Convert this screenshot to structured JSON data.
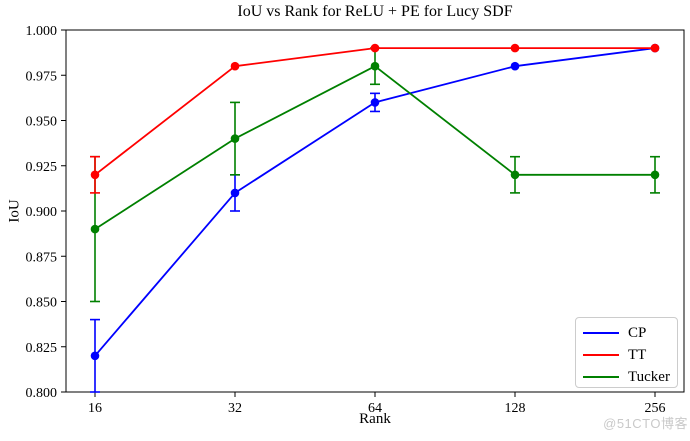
{
  "page": {
    "watermark": "@51CTO博客"
  },
  "chart_data": {
    "type": "line",
    "title": "IoU vs Rank for ReLU + PE for Lucy SDF",
    "xlabel": "Rank",
    "ylabel": "IoU",
    "x": [
      16,
      32,
      64,
      128,
      256
    ],
    "x_tick_labels": [
      "16",
      "32",
      "64",
      "128",
      "256"
    ],
    "x_scale": "log2 (evenly spaced ticks)",
    "ylim": [
      0.8,
      1.0
    ],
    "y_ticks": [
      0.8,
      0.825,
      0.85,
      0.875,
      0.9,
      0.925,
      0.95,
      0.975,
      1.0
    ],
    "y_tick_format": "3-decimals",
    "grid": false,
    "marker": "circle",
    "error_bars": true,
    "legend_position": "lower right",
    "axis_color": "#000000",
    "background_color": "#ffffff",
    "series": [
      {
        "name": "CP",
        "color": "#0000ff",
        "values": [
          0.82,
          0.91,
          0.96,
          0.98,
          0.99
        ],
        "yerr": [
          0.02,
          0.01,
          0.005,
          0.0,
          0.0
        ]
      },
      {
        "name": "TT",
        "color": "#ff0000",
        "values": [
          0.92,
          0.98,
          0.99,
          0.99,
          0.99
        ],
        "yerr": [
          0.01,
          0.0,
          0.0,
          0.0,
          0.0
        ]
      },
      {
        "name": "Tucker",
        "color": "#008000",
        "values": [
          0.89,
          0.94,
          0.98,
          0.92,
          0.92
        ],
        "yerr": [
          0.04,
          0.02,
          0.01,
          0.01,
          0.01
        ]
      }
    ]
  }
}
